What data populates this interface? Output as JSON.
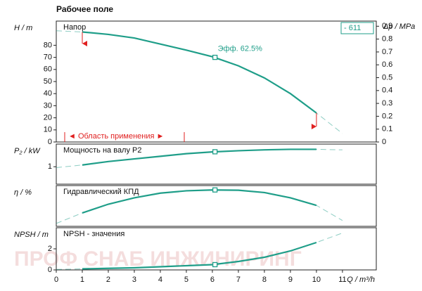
{
  "chart_data": [
    {
      "type": "line",
      "title": "Рабочее поле",
      "ylabel": "H / m",
      "y2label": "Δp / MPa",
      "badge": "- 611",
      "annotation": "Эфф. 62.5%",
      "range_label": "◄ Область применения ►",
      "operating_range": [
        1,
        10
      ],
      "xlim": [
        0,
        12.3
      ],
      "ylim": [
        0,
        100
      ],
      "yticks": [
        0,
        10,
        20,
        30,
        40,
        50,
        60,
        70,
        80
      ],
      "y2lim": [
        0,
        0.94
      ],
      "y2ticks": [
        0,
        0.1,
        0.2,
        0.3,
        0.4,
        0.5,
        0.6,
        0.7,
        0.8,
        0.9
      ],
      "series": [
        {
          "name": "Напор",
          "color": "#1f9e89",
          "x": [
            0,
            1,
            2,
            3,
            4,
            5,
            6,
            7,
            8,
            9,
            10,
            11
          ],
          "values": [
            92,
            91,
            89,
            86,
            81,
            76,
            70.5,
            63,
            53,
            40,
            24,
            7
          ]
        }
      ],
      "duty_point": {
        "x": 6.1,
        "y": 70
      }
    },
    {
      "type": "line",
      "ylabel": "P₂ / kW",
      "xlim": [
        0,
        12.3
      ],
      "ylim": [
        0,
        2.3
      ],
      "yticks": [
        1
      ],
      "series": [
        {
          "name": "Мощность на валу P2",
          "color": "#1f9e89",
          "x": [
            0,
            1,
            2,
            3,
            4,
            5,
            6,
            7,
            8,
            9,
            10,
            11
          ],
          "values": [
            0.95,
            1.1,
            1.3,
            1.45,
            1.6,
            1.75,
            1.85,
            1.92,
            1.97,
            2.0,
            2.0,
            1.97
          ]
        }
      ],
      "duty_point": {
        "x": 6.1,
        "y": 1.86
      }
    },
    {
      "type": "line",
      "ylabel": "η / %",
      "xlim": [
        0,
        12.3
      ],
      "ylim": [
        0,
        70
      ],
      "yticks": [],
      "series": [
        {
          "name": "Гидравлический КПД",
          "color": "#1f9e89",
          "x": [
            0,
            1,
            2,
            3,
            4,
            5,
            6,
            7,
            8,
            9,
            10,
            11
          ],
          "values": [
            5,
            23,
            38,
            49,
            57,
            61,
            62.5,
            62,
            58,
            49,
            36,
            10
          ]
        }
      ],
      "duty_point": {
        "x": 6.1,
        "y": 62.5
      }
    },
    {
      "type": "line",
      "ylabel": "NPSH / m",
      "xlabel": "Q / m³/h",
      "xlim": [
        0,
        12.3
      ],
      "ylim": [
        0,
        4
      ],
      "yticks": [
        0,
        2
      ],
      "xticks": [
        0,
        1,
        2,
        3,
        4,
        5,
        6,
        7,
        8,
        9,
        10,
        11
      ],
      "series": [
        {
          "name": "NPSH - значения",
          "color": "#1f9e89",
          "x": [
            0,
            1,
            2,
            3,
            4,
            5,
            6,
            7,
            8,
            9,
            10,
            11
          ],
          "values": [
            0.05,
            0.1,
            0.15,
            0.2,
            0.3,
            0.4,
            0.5,
            0.8,
            1.2,
            1.8,
            2.6,
            3.5
          ]
        }
      ],
      "duty_point": {
        "x": 6.1,
        "y": 0.5
      }
    }
  ],
  "watermark": "ПРОФ СНАБ ИНЖИНИРИНГ"
}
